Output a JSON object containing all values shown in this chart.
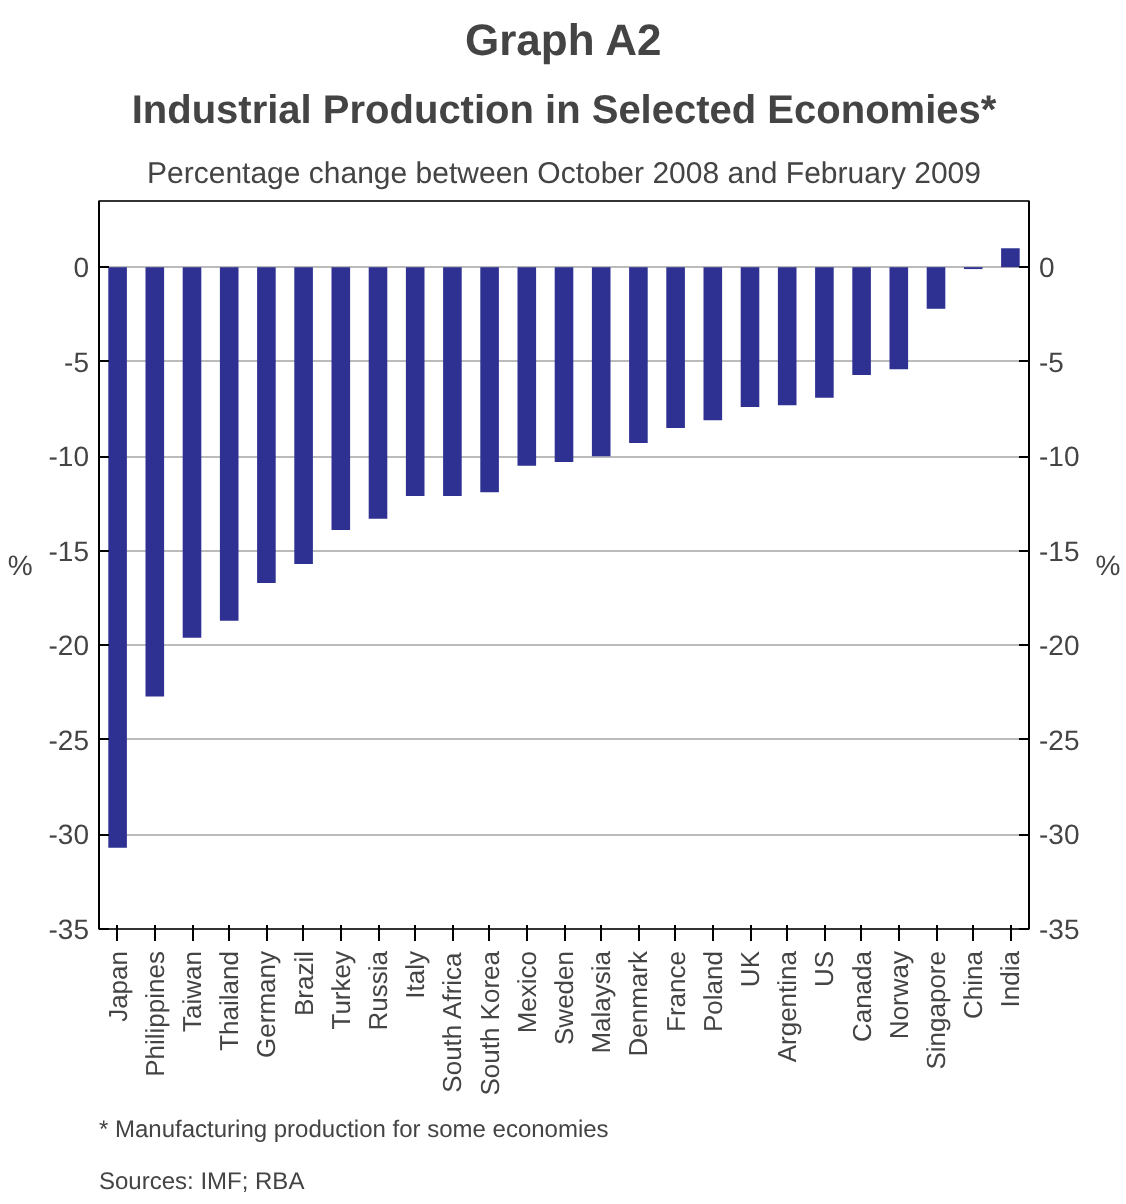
{
  "chart_data": {
    "type": "bar",
    "title": "Graph A2",
    "subtitle": "Industrial Production in Selected Economies*",
    "xlabel": "Percentage change between October 2008 and February 2009",
    "ylabel": "%",
    "y2label": "%",
    "categories": [
      "Japan",
      "Philippines",
      "Taiwan",
      "Thailand",
      "Germany",
      "Brazil",
      "Turkey",
      "Russia",
      "Italy",
      "South Africa",
      "South Korea",
      "Mexico",
      "Sweden",
      "Malaysia",
      "Denmark",
      "France",
      "Poland",
      "UK",
      "Argentina",
      "US",
      "Canada",
      "Norway",
      "Singapore",
      "China",
      "India"
    ],
    "values": [
      -30.7,
      -22.7,
      -19.6,
      -18.7,
      -16.7,
      -15.7,
      -13.9,
      -13.3,
      -12.1,
      -12.1,
      -11.9,
      -10.5,
      -10.3,
      -10.0,
      -9.3,
      -8.5,
      -8.1,
      -7.4,
      -7.3,
      -6.9,
      -5.7,
      -5.4,
      -2.2,
      -0.1,
      1.0
    ],
    "color": "#2e3192",
    "ylim": [
      -35,
      3.5
    ],
    "yticks": [
      -35,
      -30,
      -25,
      -20,
      -15,
      -10,
      -5,
      0
    ],
    "y2lim": [
      -35,
      3.5
    ],
    "y2ticks": [
      -35,
      -30,
      -25,
      -20,
      -15,
      -10,
      -5,
      0
    ],
    "grid": "y",
    "annotations": [
      "*    Manufacturing production for some economies",
      "Sources: IMF; RBA"
    ]
  }
}
